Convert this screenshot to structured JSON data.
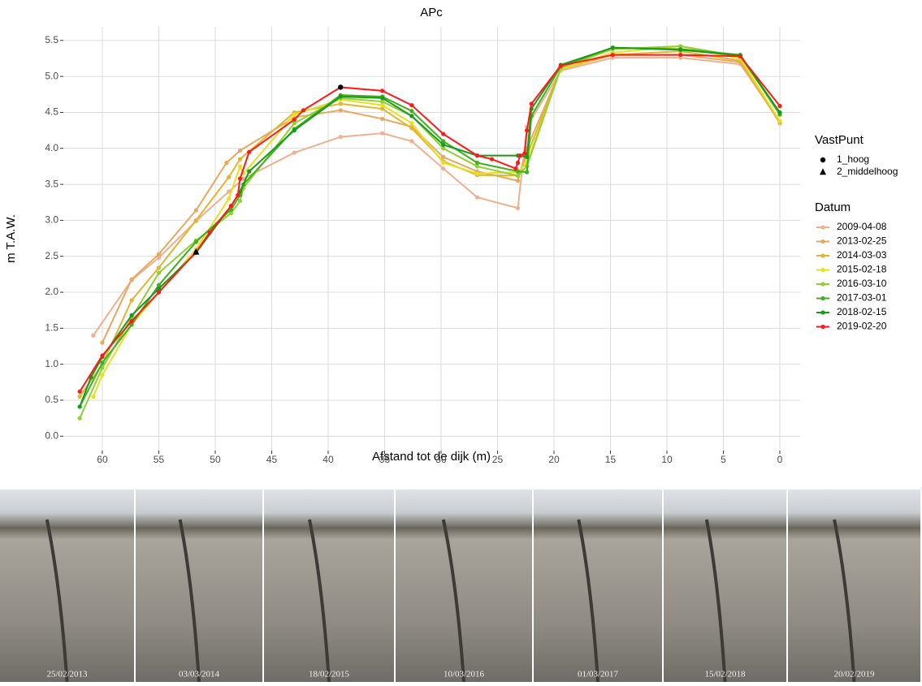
{
  "chart_data": {
    "type": "line",
    "title": "APc",
    "xlabel": "Afstand tot de dijk (m)",
    "ylabel": "m T.A.W.",
    "xlim": [
      63.45,
      -1.8
    ],
    "ylim": [
      -0.2,
      5.69
    ],
    "xticks": [
      60,
      55,
      50,
      45,
      40,
      35,
      30,
      25,
      20,
      15,
      10,
      5,
      0
    ],
    "yticks": [
      {
        "value": 0,
        "label": "0.0"
      },
      {
        "value": 0.5,
        "label": "0.5"
      },
      {
        "value": 1,
        "label": "1.0"
      },
      {
        "value": 1.5,
        "label": "1.5"
      },
      {
        "value": 2,
        "label": "2.0"
      },
      {
        "value": 2.5,
        "label": "2.5"
      },
      {
        "value": 3,
        "label": "3.0"
      },
      {
        "value": 3.5,
        "label": "3.5"
      },
      {
        "value": 4,
        "label": "4.0"
      },
      {
        "value": 4.5,
        "label": "4.5"
      },
      {
        "value": 5,
        "label": "5.0"
      },
      {
        "value": 5.5,
        "label": "5.5"
      }
    ],
    "grid": true,
    "marker_legend_title": "VastPunt",
    "markers": [
      {
        "name": "1_hoog",
        "shape": "circle",
        "x": 38.9,
        "y": 4.85
      },
      {
        "name": "2_middelhoog",
        "shape": "triangle",
        "x": 51.7,
        "y": 2.56
      }
    ],
    "legend_title": "Datum",
    "series": [
      {
        "name": "2009-04-08",
        "color": "#f0b090",
        "x": [
          60.8,
          57.4,
          55,
          51.7,
          48.8,
          47.5,
          43,
          38.9,
          35.2,
          32.6,
          29.8,
          26.8,
          23.2,
          22.4,
          19.4,
          14.8,
          8.8,
          3.5,
          0
        ],
        "values": [
          1.4,
          2.17,
          2.48,
          2.99,
          3.4,
          3.58,
          3.94,
          4.16,
          4.21,
          4.1,
          3.72,
          3.32,
          3.17,
          4.3,
          5.08,
          5.26,
          5.26,
          5.17,
          4.37
        ]
      },
      {
        "name": "2013-02-25",
        "color": "#e8a860",
        "x": [
          60,
          57.4,
          55,
          51.7,
          49,
          47.8,
          43,
          38.9,
          35.2,
          32.6,
          29.8,
          26.8,
          23.2,
          22.4,
          19.4,
          14.8,
          8.8,
          3.5,
          0
        ],
        "values": [
          1.3,
          2.18,
          2.53,
          3.14,
          3.8,
          3.97,
          4.43,
          4.53,
          4.41,
          4.3,
          3.88,
          3.68,
          3.55,
          4.0,
          5.1,
          5.3,
          5.3,
          5.2,
          4.36
        ]
      },
      {
        "name": "2014-03-03",
        "color": "#e4b430",
        "x": [
          62,
          60,
          57.4,
          55,
          51.7,
          48.8,
          47.8,
          43,
          38.9,
          35.2,
          32.6,
          29.8,
          26.8,
          23.2,
          22.4,
          19.4,
          14.8,
          8.8,
          3.5,
          0
        ],
        "values": [
          0.55,
          1.0,
          1.89,
          2.34,
          3.0,
          3.6,
          3.85,
          4.5,
          4.62,
          4.55,
          4.28,
          3.82,
          3.63,
          3.62,
          3.9,
          5.1,
          5.3,
          5.35,
          5.22,
          4.35
        ]
      },
      {
        "name": "2015-02-18",
        "color": "#e6e020",
        "x": [
          60.8,
          60,
          57.4,
          55,
          51.7,
          48.8,
          47.8,
          47.5,
          43,
          38.9,
          35.2,
          32.6,
          29.8,
          26.8,
          23.2,
          22.4,
          19.4,
          14.8,
          8.8,
          3.5,
          0
        ],
        "values": [
          0.55,
          0.85,
          1.55,
          2.0,
          2.6,
          3.3,
          3.75,
          3.65,
          4.47,
          4.68,
          4.6,
          4.35,
          3.8,
          3.65,
          3.67,
          3.8,
          5.1,
          5.33,
          5.42,
          5.25,
          4.38
        ]
      },
      {
        "name": "2016-03-10",
        "color": "#90d030",
        "x": [
          62,
          60,
          57.4,
          55,
          51.7,
          48.6,
          47.8,
          47.5,
          43,
          38.9,
          35.2,
          32.6,
          29.8,
          26.8,
          23.2,
          22.4,
          19.4,
          14.8,
          8.8,
          3.5,
          0
        ],
        "values": [
          0.25,
          0.95,
          1.65,
          2.27,
          2.72,
          3.1,
          3.27,
          3.45,
          4.35,
          4.7,
          4.65,
          4.45,
          4.0,
          3.75,
          3.62,
          3.75,
          5.12,
          5.38,
          5.42,
          5.28,
          4.48
        ]
      },
      {
        "name": "2017-03-01",
        "color": "#40b020",
        "x": [
          62,
          60,
          57.4,
          55,
          51.7,
          48.6,
          47.8,
          47.5,
          43,
          38.9,
          35.2,
          32.6,
          29.8,
          26.8,
          23.2,
          22.4,
          22,
          19.4,
          14.8,
          8.8,
          3.5,
          0
        ],
        "values": [
          0.41,
          1.02,
          1.55,
          2.1,
          2.7,
          3.15,
          3.35,
          3.5,
          4.27,
          4.74,
          4.72,
          4.52,
          4.1,
          3.8,
          3.68,
          3.67,
          4.45,
          5.14,
          5.4,
          5.38,
          5.3,
          4.47
        ]
      },
      {
        "name": "2018-02-15",
        "color": "#1a9a1a",
        "x": [
          62,
          61,
          60,
          57.4,
          55,
          51.7,
          48.6,
          47.8,
          47,
          43,
          38.9,
          35.2,
          32.6,
          29.8,
          26.8,
          23.2,
          22.4,
          22,
          19.4,
          14.8,
          8.8,
          3.5,
          0
        ],
        "values": [
          0.41,
          0.82,
          1.1,
          1.68,
          2.05,
          2.55,
          3.2,
          3.4,
          3.68,
          4.25,
          4.72,
          4.7,
          4.45,
          4.05,
          3.9,
          3.9,
          3.88,
          4.55,
          5.16,
          5.4,
          5.37,
          5.29,
          4.5
        ]
      },
      {
        "name": "2019-02-20",
        "color": "#ff1a1a",
        "x": [
          62,
          60,
          57.4,
          55,
          51.7,
          50.5,
          48.6,
          48,
          47.8,
          47,
          43,
          42.2,
          38.9,
          35.2,
          32.6,
          29.8,
          26.8,
          25.5,
          23.4,
          23.2,
          23,
          22.6,
          22.4,
          22,
          19.4,
          14.8,
          8.8,
          3.5,
          0
        ],
        "values": [
          0.62,
          1.12,
          1.6,
          2.0,
          2.56,
          2.83,
          3.2,
          3.35,
          3.58,
          3.95,
          4.4,
          4.53,
          4.85,
          4.8,
          4.6,
          4.2,
          3.9,
          3.85,
          3.72,
          3.8,
          3.9,
          3.93,
          4.25,
          4.62,
          5.15,
          5.3,
          5.3,
          5.28,
          4.59
        ]
      }
    ]
  },
  "photos": [
    {
      "caption": "25/02/2013"
    },
    {
      "caption": "03/03/2014"
    },
    {
      "caption": "18/02/2015"
    },
    {
      "caption": "10/03/2016"
    },
    {
      "caption": "01/03/2017"
    },
    {
      "caption": "15/02/2018"
    },
    {
      "caption": "20/02/2019"
    }
  ]
}
